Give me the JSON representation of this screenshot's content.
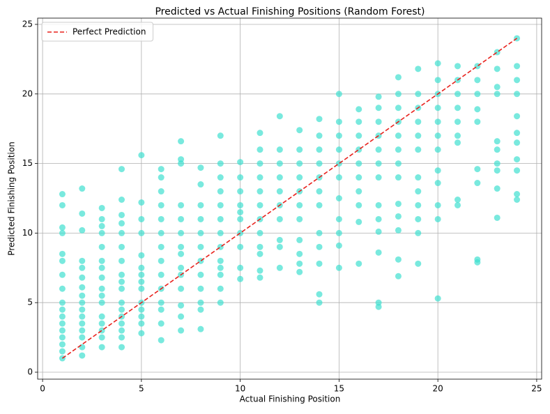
{
  "chart_data": {
    "type": "scatter",
    "title": "Predicted vs Actual Finishing Positions (Random Forest)",
    "xlabel": "Actual Finishing Position",
    "ylabel": "Predicted Finishing Position",
    "color": "#40e0d0",
    "x": [
      1,
      1,
      1,
      1,
      1,
      1,
      1,
      1,
      1,
      1,
      1,
      1,
      1,
      1,
      1,
      1,
      1,
      2,
      2,
      2,
      2,
      2,
      2,
      2,
      2,
      2,
      2,
      2,
      2,
      2,
      2,
      2,
      2,
      3,
      3,
      3,
      3,
      3,
      3,
      3,
      3,
      3,
      3,
      3,
      3,
      3,
      3,
      3,
      3,
      4,
      4,
      4,
      4,
      4,
      4,
      4,
      4,
      4,
      4,
      4,
      4,
      4,
      4,
      4,
      4,
      4,
      5,
      5,
      5,
      5,
      5,
      5,
      5,
      5,
      5,
      5,
      5,
      5,
      5,
      5,
      6,
      6,
      6,
      6,
      6,
      6,
      6,
      6,
      6,
      6,
      6,
      6,
      6,
      6,
      7,
      7,
      7,
      7,
      7,
      7,
      7,
      7,
      7,
      7,
      7,
      7,
      7,
      7,
      8,
      8,
      8,
      8,
      8,
      8,
      8,
      8,
      8,
      8,
      8,
      8,
      9,
      9,
      9,
      9,
      9,
      9,
      9,
      9,
      9,
      9,
      9,
      9,
      9,
      10,
      10,
      10,
      10,
      10,
      10,
      10,
      10,
      10,
      10,
      11,
      11,
      11,
      11,
      11,
      11,
      11,
      11,
      11,
      11,
      11,
      11,
      12,
      12,
      12,
      12,
      12,
      12,
      12,
      12,
      12,
      12,
      13,
      13,
      13,
      13,
      13,
      13,
      13,
      13,
      13,
      13,
      13,
      14,
      14,
      14,
      14,
      14,
      14,
      14,
      14,
      14,
      14,
      14,
      14,
      15,
      15,
      15,
      15,
      15,
      15,
      15,
      15,
      15,
      15,
      15,
      16,
      16,
      16,
      16,
      16,
      16,
      16,
      16,
      16,
      16,
      17,
      17,
      17,
      17,
      17,
      17,
      17,
      17,
      17,
      17,
      17,
      17,
      17,
      18,
      18,
      18,
      18,
      18,
      18,
      18,
      18,
      18,
      18,
      18,
      18,
      18,
      19,
      19,
      19,
      19,
      19,
      19,
      19,
      19,
      19,
      19,
      19,
      19,
      20,
      20,
      20,
      20,
      20,
      20,
      20,
      20,
      20,
      20,
      20,
      20,
      21,
      21,
      21,
      21,
      21,
      21,
      21,
      21,
      21,
      22,
      22,
      22,
      22,
      22,
      22,
      22,
      22,
      22,
      23,
      23,
      23,
      23,
      23,
      23,
      23,
      23,
      23,
      23,
      24,
      24,
      24,
      24,
      24,
      24,
      24,
      24,
      24,
      24,
      24
    ],
    "y": [
      1,
      1.5,
      2,
      2.5,
      3,
      3.5,
      4,
      4.5,
      5,
      6,
      7,
      8,
      8.5,
      10,
      10.4,
      12,
      12.8,
      1.2,
      1.8,
      2.5,
      3,
      3.5,
      4,
      4.5,
      5,
      5.5,
      6.1,
      6.8,
      7.5,
      8,
      10.2,
      11.4,
      13.2,
      1.8,
      2.5,
      3,
      3.5,
      4,
      5,
      5.5,
      6,
      6.8,
      7.5,
      8,
      9,
      10,
      10.5,
      11,
      11.8,
      1.8,
      2.5,
      3,
      3.5,
      4,
      4.5,
      5,
      6,
      6.5,
      7,
      8,
      9,
      10,
      10.7,
      11.3,
      12.4,
      14.6,
      2.8,
      3.5,
      4,
      4.5,
      5,
      6,
      6.5,
      7,
      7.5,
      8.4,
      10,
      11,
      12.2,
      15.6,
      2.3,
      3.5,
      4.5,
      5,
      6,
      7,
      8,
      9,
      10,
      11,
      12,
      13,
      14,
      14.6,
      3,
      4,
      4.8,
      6,
      7,
      7.5,
      8.5,
      9,
      10,
      11,
      12,
      15,
      15.3,
      16.6,
      3.1,
      4.5,
      5,
      6,
      7,
      8,
      9,
      10,
      11,
      12,
      13.5,
      14.7,
      5,
      6,
      7,
      7.5,
      8,
      9,
      10,
      11,
      12,
      13,
      14,
      15,
      17,
      6.7,
      7.5,
      9,
      10,
      11,
      11.5,
      12,
      13,
      14,
      15.1,
      6.8,
      7.3,
      8.5,
      9,
      10,
      11,
      12,
      13,
      14,
      15,
      16,
      17.2,
      7.5,
      9,
      9.5,
      11,
      12,
      13,
      14,
      15,
      16,
      18.4,
      7.2,
      7.8,
      8.5,
      9.5,
      11,
      12,
      13,
      14,
      15,
      16,
      17.4,
      5,
      5.6,
      7.8,
      9,
      10,
      12,
      13,
      14,
      15,
      16,
      17,
      18.2,
      7.5,
      9.1,
      10,
      11,
      12.5,
      14,
      15,
      16,
      17,
      18,
      20,
      7.8,
      10.8,
      12,
      13,
      14,
      15,
      16,
      17,
      18,
      18.9,
      4.7,
      5,
      8.6,
      10.1,
      11,
      12,
      14,
      15,
      16,
      17,
      18,
      19,
      19.8,
      6.9,
      8.1,
      10.2,
      11.2,
      12.1,
      14,
      15,
      16,
      17,
      18,
      19,
      20,
      21.2,
      7.8,
      10,
      11,
      12,
      13,
      14,
      16,
      17,
      18,
      19,
      20,
      21.8,
      5.3,
      11,
      12,
      13.6,
      14.5,
      16,
      17,
      18,
      19,
      20,
      21,
      22.2,
      12,
      12.4,
      16.5,
      17,
      18,
      19,
      20,
      21,
      22,
      7.9,
      8.1,
      13.6,
      14.6,
      18,
      18.9,
      20,
      21,
      22,
      11.1,
      13.2,
      14.5,
      15,
      16,
      16.6,
      20,
      20.5,
      21.8,
      23,
      12.4,
      12.8,
      14.5,
      15.3,
      16.5,
      17.2,
      18.4,
      20,
      21,
      22,
      24
    ],
    "reference_line": {
      "name": "Perfect Prediction",
      "x": [
        1,
        24
      ],
      "y": [
        1,
        24
      ],
      "color": "#e8211c",
      "style": "dashed"
    },
    "xlim": [
      -0.25,
      25.25
    ],
    "ylim": [
      -0.5,
      25.45
    ],
    "xticks": [
      0,
      5,
      10,
      15,
      20,
      25
    ],
    "yticks": [
      0,
      5,
      10,
      15,
      20,
      25
    ],
    "grid": true,
    "legend": "upper left"
  }
}
